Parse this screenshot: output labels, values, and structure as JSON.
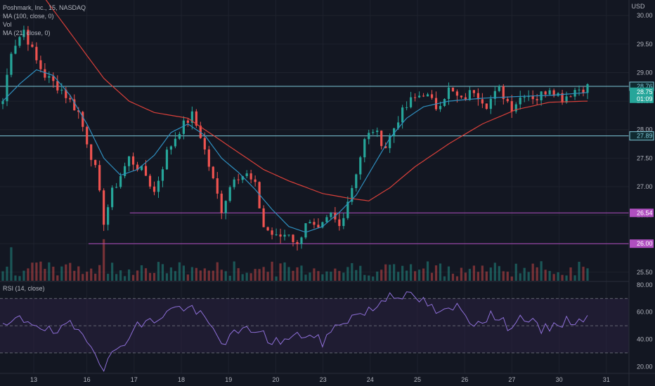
{
  "legend": {
    "symbol": "Poshmark, Inc., 15, NASDAQ",
    "ma100": "MA (100, close, 0)",
    "vol": "Vol",
    "ma21": "MA (21, close, 0)",
    "rsi": "RSI (14, close)"
  },
  "currency": "USD",
  "colors": {
    "background": "#131722",
    "up": "#26a69a",
    "down": "#ef5350",
    "ma100": "#d9403a",
    "ma21": "#2f8fbf",
    "resistance": "#7ec8d8",
    "support": "#b04fc0",
    "rsi": "#8e6fd8",
    "rsi_band": "#2a2140",
    "price_tag": "#26a69a"
  },
  "chart_data": [
    {
      "type": "candlestick",
      "title": "Poshmark, Inc., 15, NASDAQ",
      "interval": "15",
      "ylim": [
        25.35,
        30.15
      ],
      "price_ticks": [
        "30.00",
        "29.50",
        "29.00",
        "28.50",
        "28.00",
        "27.50",
        "27.00",
        "26.50",
        "26.00",
        "25.50"
      ],
      "x_ticks": [
        "13",
        "16",
        "17",
        "18",
        "19",
        "20",
        "23",
        "24",
        "25",
        "26",
        "27",
        "30",
        "31"
      ],
      "levels": [
        {
          "value": 28.76,
          "label": "28.76",
          "kind": "resistance"
        },
        {
          "value": 27.89,
          "label": "27.89",
          "kind": "resistance"
        },
        {
          "value": 26.54,
          "label": "26.54",
          "kind": "support"
        },
        {
          "value": 26.0,
          "label": "26.00",
          "kind": "support"
        }
      ],
      "last_price": {
        "value": 28.75,
        "label": "28.75",
        "countdown": "01:09"
      },
      "price_path": [
        [
          0,
          28.5
        ],
        [
          2,
          29.4
        ],
        [
          5,
          29.75
        ],
        [
          8,
          29.2
        ],
        [
          10,
          28.95
        ],
        [
          14,
          28.7
        ],
        [
          18,
          28.3
        ],
        [
          22,
          27.3
        ],
        [
          24,
          26.4
        ],
        [
          26,
          26.9
        ],
        [
          30,
          27.5
        ],
        [
          34,
          27.2
        ],
        [
          36,
          26.9
        ],
        [
          39,
          27.6
        ],
        [
          42,
          28.0
        ],
        [
          45,
          28.25
        ],
        [
          47,
          27.9
        ],
        [
          50,
          27.1
        ],
        [
          52,
          26.6
        ],
        [
          55,
          27.2
        ],
        [
          58,
          27.2
        ],
        [
          60,
          27.0
        ],
        [
          62,
          26.3
        ],
        [
          65,
          26.1
        ],
        [
          68,
          26.2
        ],
        [
          70,
          25.95
        ],
        [
          72,
          26.4
        ],
        [
          75,
          26.2
        ],
        [
          78,
          26.5
        ],
        [
          80,
          26.3
        ],
        [
          83,
          27.0
        ],
        [
          86,
          27.8
        ],
        [
          88,
          28.0
        ],
        [
          91,
          27.7
        ],
        [
          94,
          28.2
        ],
        [
          97,
          28.5
        ],
        [
          100,
          28.65
        ],
        [
          103,
          28.4
        ],
        [
          106,
          28.7
        ],
        [
          109,
          28.5
        ],
        [
          112,
          28.7
        ],
        [
          115,
          28.45
        ],
        [
          118,
          28.7
        ],
        [
          121,
          28.4
        ],
        [
          124,
          28.65
        ],
        [
          127,
          28.55
        ],
        [
          130,
          28.75
        ],
        [
          133,
          28.55
        ],
        [
          136,
          28.7
        ],
        [
          139,
          28.75
        ]
      ],
      "ma100_path": [
        [
          0,
          30.3
        ],
        [
          10,
          30.3
        ],
        [
          16,
          29.7
        ],
        [
          24,
          28.9
        ],
        [
          30,
          28.5
        ],
        [
          36,
          28.3
        ],
        [
          44,
          28.2
        ],
        [
          50,
          27.9
        ],
        [
          56,
          27.6
        ],
        [
          62,
          27.3
        ],
        [
          68,
          27.1
        ],
        [
          76,
          26.88
        ],
        [
          82,
          26.8
        ],
        [
          87,
          26.75
        ],
        [
          92,
          26.98
        ],
        [
          98,
          27.35
        ],
        [
          106,
          27.75
        ],
        [
          114,
          28.1
        ],
        [
          122,
          28.35
        ],
        [
          130,
          28.48
        ],
        [
          139,
          28.5
        ]
      ],
      "ma21_path": [
        [
          0,
          28.5
        ],
        [
          4,
          28.8
        ],
        [
          8,
          29.05
        ],
        [
          12,
          28.95
        ],
        [
          16,
          28.6
        ],
        [
          20,
          28.1
        ],
        [
          24,
          27.5
        ],
        [
          28,
          27.2
        ],
        [
          32,
          27.3
        ],
        [
          36,
          27.55
        ],
        [
          40,
          27.95
        ],
        [
          44,
          28.1
        ],
        [
          48,
          27.9
        ],
        [
          52,
          27.5
        ],
        [
          56,
          27.25
        ],
        [
          60,
          26.95
        ],
        [
          64,
          26.6
        ],
        [
          68,
          26.3
        ],
        [
          72,
          26.2
        ],
        [
          76,
          26.3
        ],
        [
          80,
          26.55
        ],
        [
          84,
          26.85
        ],
        [
          88,
          27.35
        ],
        [
          92,
          27.85
        ],
        [
          96,
          28.2
        ],
        [
          100,
          28.4
        ],
        [
          106,
          28.5
        ],
        [
          114,
          28.55
        ],
        [
          122,
          28.58
        ],
        [
          130,
          28.6
        ],
        [
          139,
          28.65
        ]
      ]
    },
    {
      "type": "line",
      "title": "RSI (14, close)",
      "ylim": [
        15,
        82
      ],
      "y_ticks": [
        "80.00",
        "60.00",
        "40.00",
        "20.00"
      ],
      "bands": {
        "upper": 70,
        "middle": 50,
        "lower": 30
      },
      "rsi_path": [
        [
          0,
          48
        ],
        [
          4,
          55
        ],
        [
          8,
          52
        ],
        [
          12,
          44
        ],
        [
          16,
          50
        ],
        [
          20,
          42
        ],
        [
          24,
          20
        ],
        [
          28,
          36
        ],
        [
          32,
          50
        ],
        [
          36,
          54
        ],
        [
          40,
          62
        ],
        [
          44,
          64
        ],
        [
          48,
          55
        ],
        [
          52,
          38
        ],
        [
          56,
          45
        ],
        [
          60,
          48
        ],
        [
          64,
          38
        ],
        [
          68,
          40
        ],
        [
          72,
          44
        ],
        [
          76,
          38
        ],
        [
          80,
          52
        ],
        [
          84,
          58
        ],
        [
          88,
          62
        ],
        [
          92,
          74
        ],
        [
          96,
          72
        ],
        [
          100,
          68
        ],
        [
          104,
          58
        ],
        [
          108,
          64
        ],
        [
          112,
          52
        ],
        [
          116,
          58
        ],
        [
          120,
          50
        ],
        [
          124,
          57
        ],
        [
          128,
          46
        ],
        [
          132,
          52
        ],
        [
          136,
          54
        ],
        [
          139,
          56
        ]
      ]
    }
  ]
}
